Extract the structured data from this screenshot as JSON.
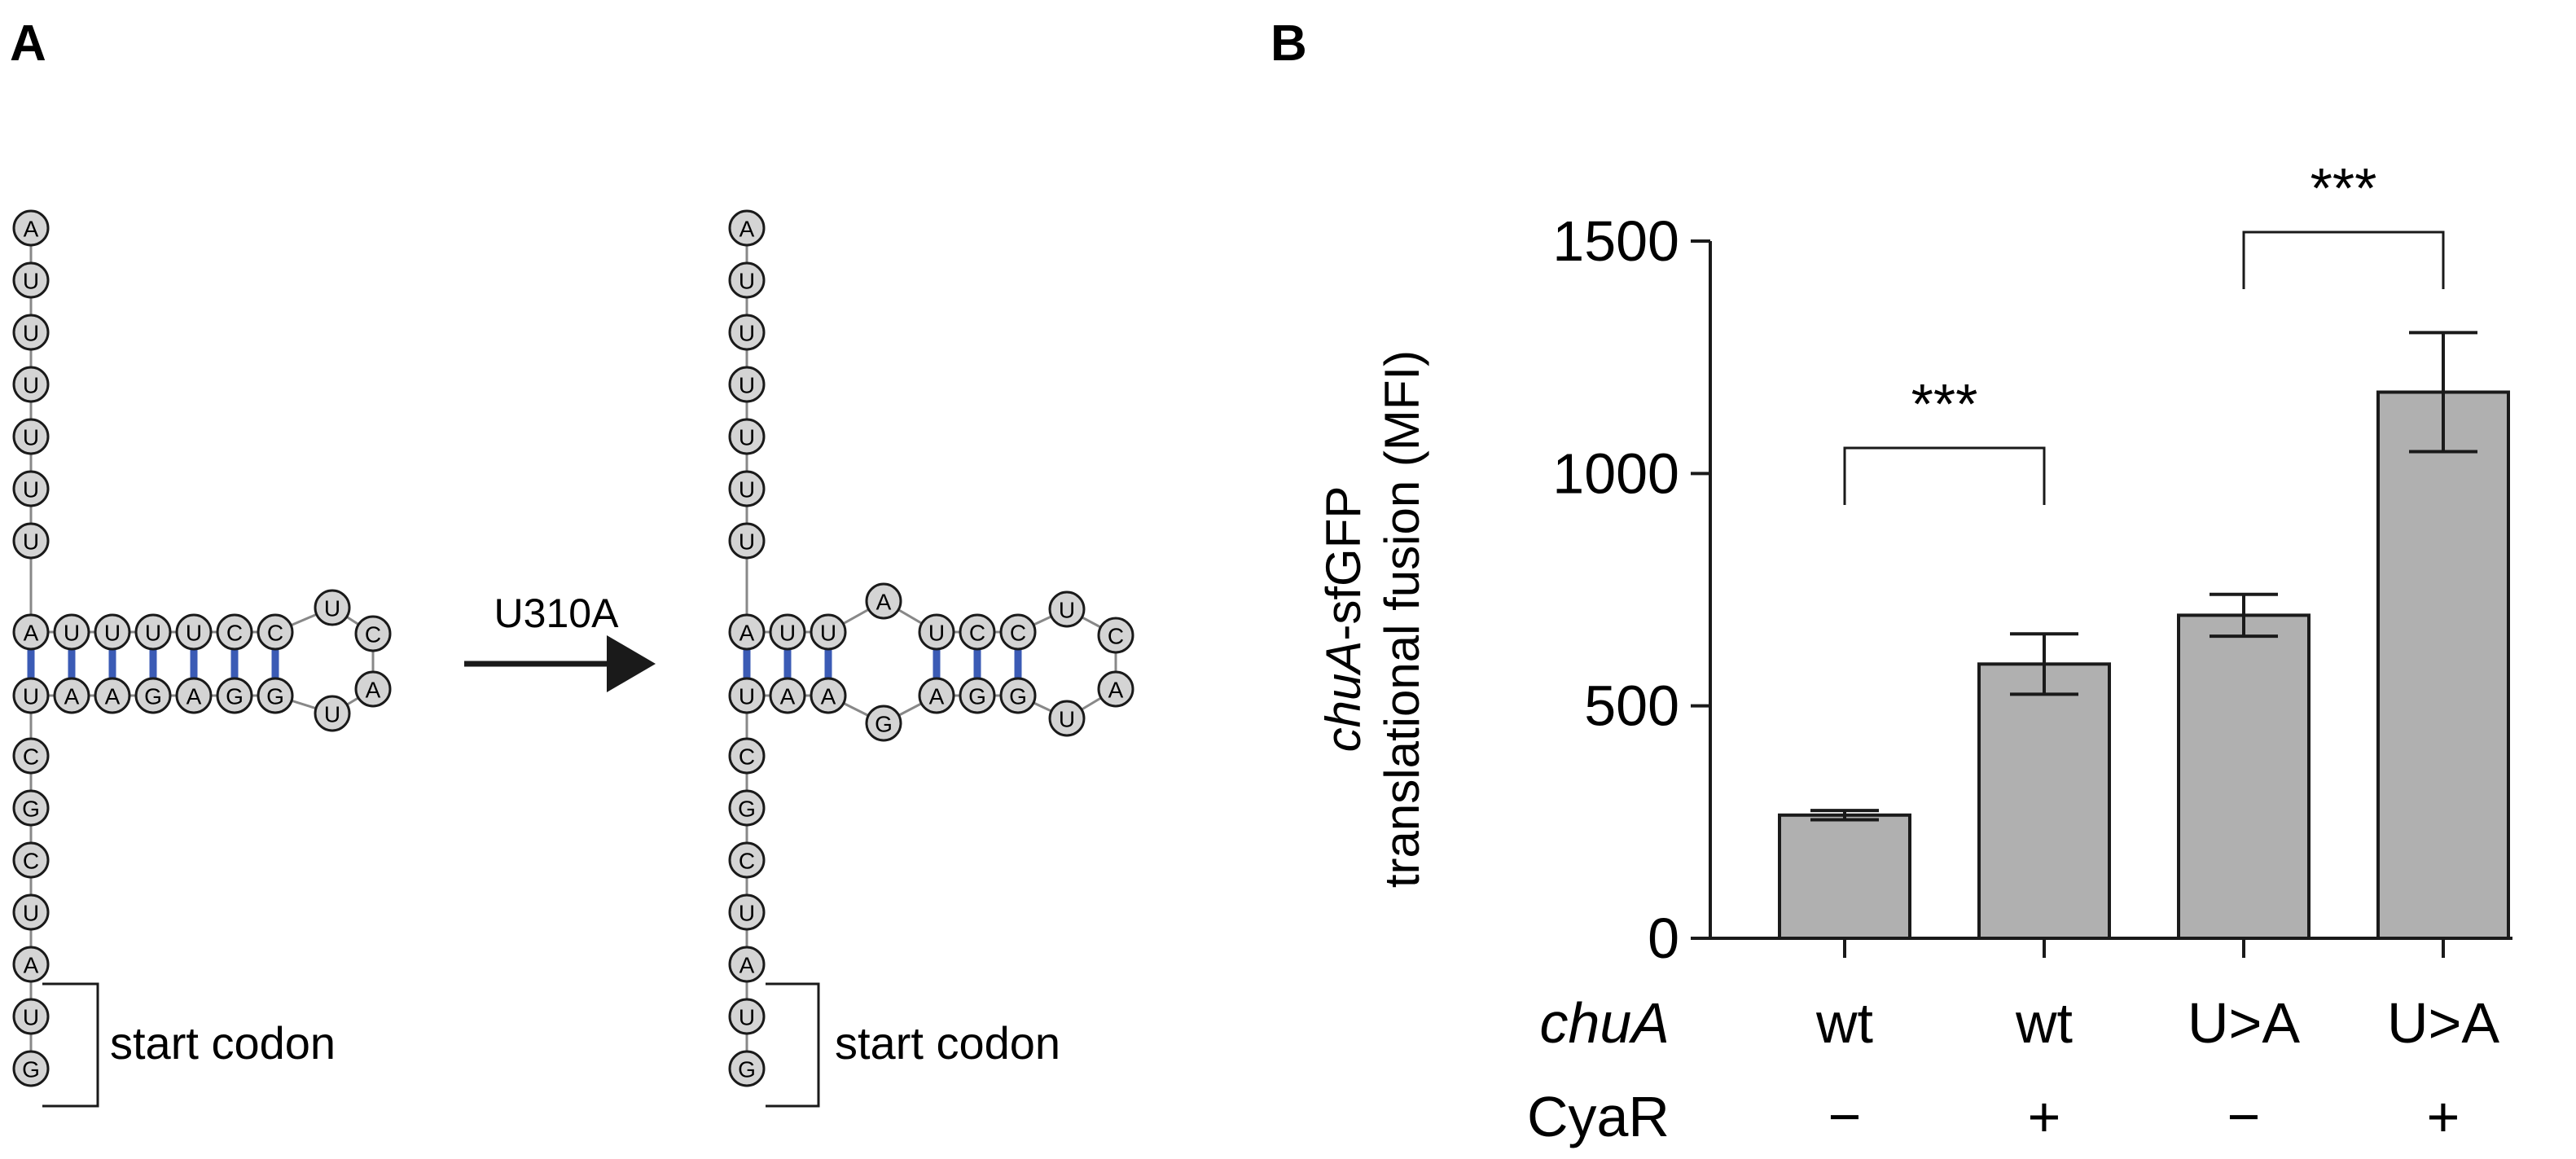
{
  "panels": {
    "a_label": "A",
    "b_label": "B"
  },
  "diagram": {
    "mutation_label": "U310A",
    "start_codon_label": "start codon",
    "wt_structure": {
      "stem_top": [
        "A",
        "U",
        "U",
        "U",
        "U",
        "U",
        "U"
      ],
      "top_row": [
        "A",
        "U",
        "U",
        "U",
        "U",
        "C",
        "C"
      ],
      "bottom_row": [
        "U",
        "A",
        "A",
        "G",
        "A",
        "G",
        "G"
      ],
      "loop": [
        "U",
        "C",
        "A",
        "U"
      ],
      "stem_bottom": [
        "C",
        "G",
        "C",
        "U",
        "A",
        "U",
        "G"
      ]
    },
    "mutant_structure": {
      "stem_top": [
        "A",
        "U",
        "U",
        "U",
        "U",
        "U",
        "U"
      ],
      "top_row": [
        "A",
        "U",
        "U",
        "A",
        "U",
        "C",
        "C",
        "U"
      ],
      "bottom_row": [
        "U",
        "A",
        "A",
        "G",
        "A",
        "G",
        "G",
        "U"
      ],
      "loop": [
        "C",
        "A"
      ],
      "stem_bottom": [
        "C",
        "G",
        "C",
        "U",
        "A",
        "U",
        "G"
      ]
    },
    "colors": {
      "nucleotide_fill": "#d4d4d4",
      "base_pair": "#3b5bb5",
      "backbone": "#888888"
    }
  },
  "chart_data": {
    "type": "bar",
    "categories": [
      "wt / −",
      "wt / +",
      "U>A / −",
      "U>A / +"
    ],
    "values": [
      265,
      590,
      695,
      1175
    ],
    "errors": [
      10,
      65,
      45,
      128
    ],
    "ylabel_italic": "chuA",
    "ylabel_line1_rest": "-sfGFP",
    "ylabel_line2": "translational fusion (MFI)",
    "ylim": [
      0,
      1500
    ],
    "yticks": [
      0,
      500,
      1000,
      1500
    ],
    "row_labels": {
      "chua_header": "chuA",
      "cyar_header": "CyaR",
      "chua_values": [
        "wt",
        "wt",
        "U>A",
        "U>A"
      ],
      "cyar_values": [
        "−",
        "+",
        "−",
        "+"
      ]
    },
    "significance": [
      {
        "pair": [
          0,
          1
        ],
        "label": "***"
      },
      {
        "pair": [
          2,
          3
        ],
        "label": "***"
      }
    ],
    "bar_color": "#b0b0b0",
    "grid": false,
    "legend": "none"
  }
}
